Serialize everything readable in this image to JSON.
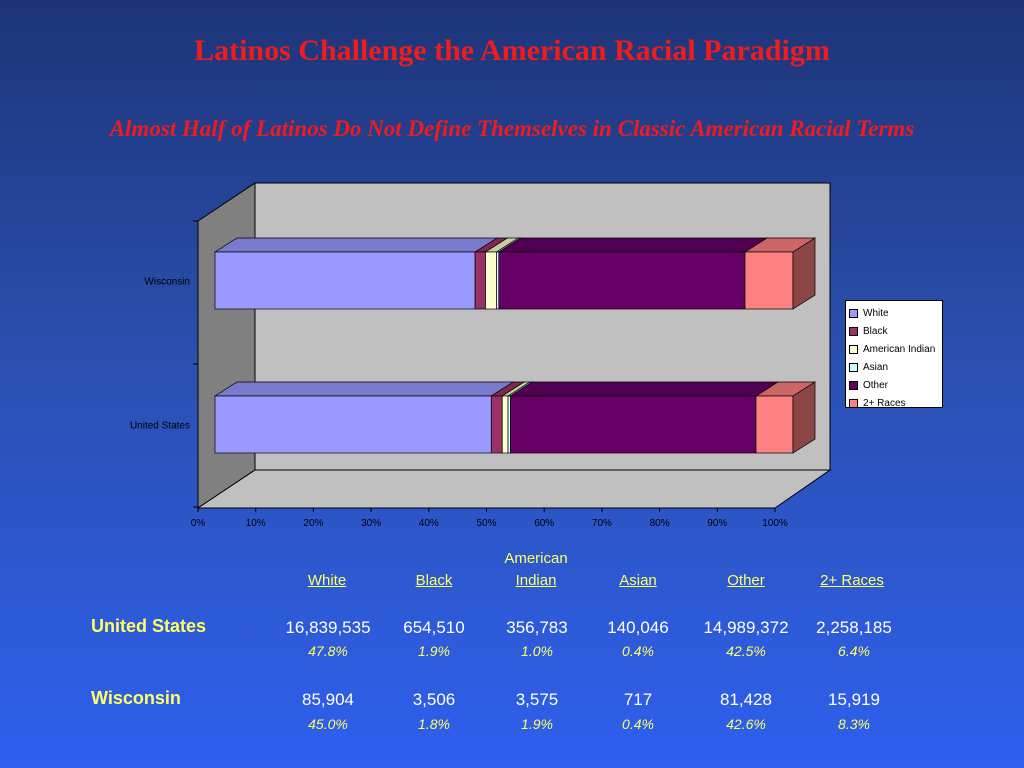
{
  "title": "Latinos Challenge the American Racial Paradigm",
  "subtitle": "Almost Half of Latinos Do Not Define Themselves in Classic American Racial Terms",
  "chart_data": {
    "type": "bar",
    "orientation": "horizontal",
    "stacked": "percent",
    "three_d": true,
    "categories": [
      "Wisconsin",
      "United States"
    ],
    "series": [
      {
        "name": "White",
        "color": "#9999ff",
        "values": [
          45.0,
          47.8
        ]
      },
      {
        "name": "Black",
        "color": "#993366",
        "values": [
          1.8,
          1.9
        ]
      },
      {
        "name": "American Indian",
        "color": "#ffffcc",
        "values": [
          1.9,
          1.0
        ]
      },
      {
        "name": "Asian",
        "color": "#ccffff",
        "values": [
          0.4,
          0.4
        ]
      },
      {
        "name": "Other",
        "color": "#660066",
        "values": [
          42.6,
          42.5
        ]
      },
      {
        "name": "2+ Races",
        "color": "#ff8080",
        "values": [
          8.3,
          6.4
        ]
      }
    ],
    "xticks": [
      "0%",
      "10%",
      "20%",
      "30%",
      "40%",
      "50%",
      "60%",
      "70%",
      "80%",
      "90%",
      "100%"
    ],
    "xlim": [
      0,
      100
    ],
    "legend_position": "right",
    "grid": false
  },
  "table": {
    "headers": [
      {
        "top": "",
        "label": "White"
      },
      {
        "top": "",
        "label": "Black"
      },
      {
        "top": "American",
        "label": "Indian"
      },
      {
        "top": "",
        "label": "Asian"
      },
      {
        "top": "",
        "label": "Other"
      },
      {
        "top": "",
        "label": "2+ Races"
      }
    ],
    "rows": [
      {
        "label": "United States",
        "counts": [
          "16,839,535",
          "654,510",
          "356,783",
          "140,046",
          "14,989,372",
          "2,258,185"
        ],
        "percents": [
          "47.8%",
          "1.9%",
          "1.0%",
          "0.4%",
          "42.5%",
          "6.4%"
        ]
      },
      {
        "label": "Wisconsin",
        "counts": [
          "85,904",
          "3,506",
          "3,575",
          "717",
          "81,428",
          "15,919"
        ],
        "percents": [
          "45.0%",
          "1.8%",
          "1.9%",
          "0.4%",
          "42.6%",
          "8.3%"
        ]
      }
    ]
  }
}
